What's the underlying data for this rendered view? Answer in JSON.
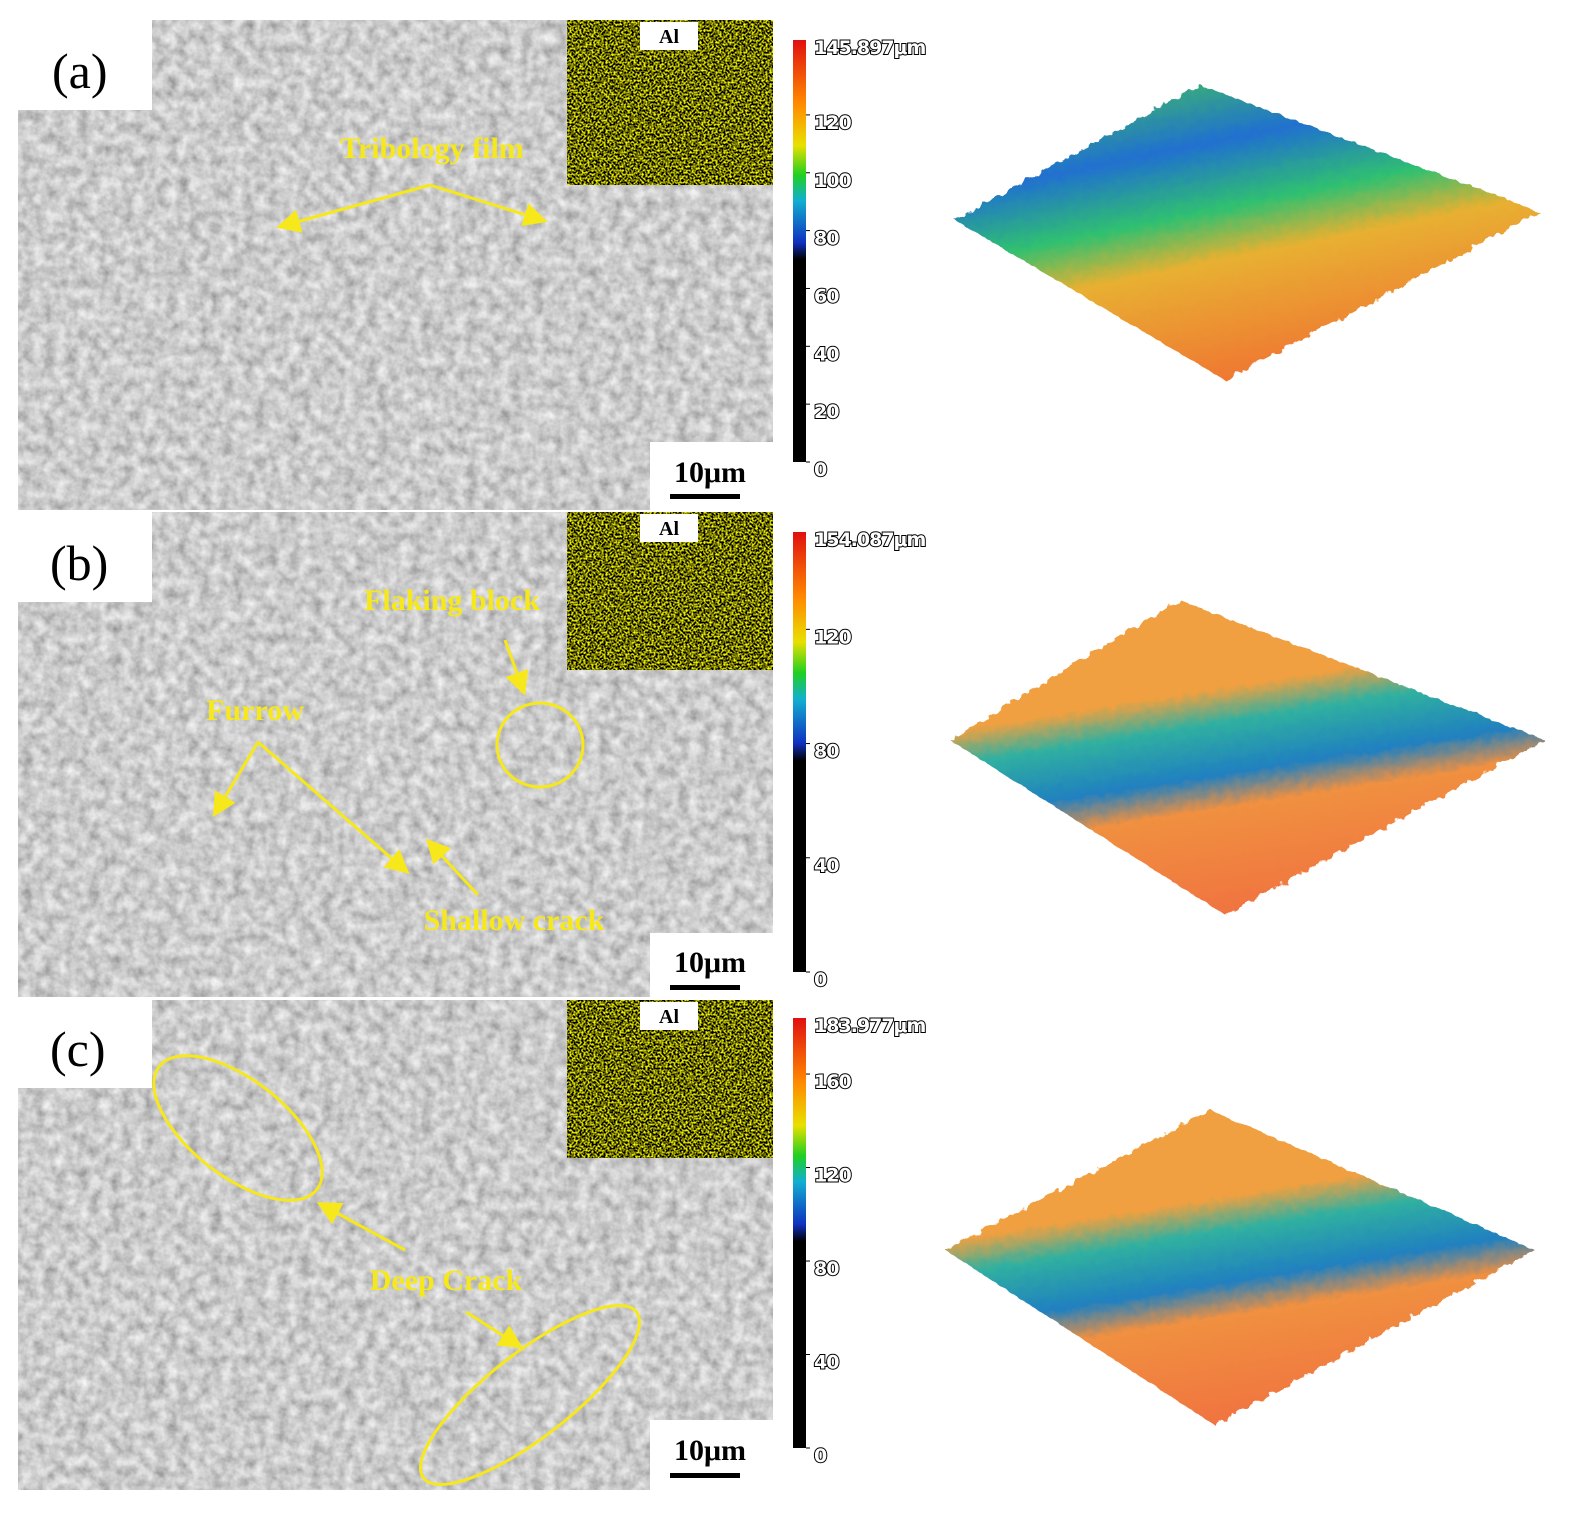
{
  "panels": [
    {
      "label": "(a)",
      "inset": "Al",
      "annotations": [
        "Tribology film"
      ],
      "scale_bar": "10μm",
      "colorbar": {
        "max": {
          "value": 145.897,
          "label": "145.897μm"
        },
        "ticks": [
          0,
          20,
          40,
          60,
          80,
          100,
          120
        ]
      }
    },
    {
      "label": "(b)",
      "inset": "Al",
      "annotations": [
        "Flaking block",
        "Furrow",
        "Shallow crack"
      ],
      "scale_bar": "10μm",
      "colorbar": {
        "max": {
          "value": 154.087,
          "label": "154.087μm"
        },
        "ticks": [
          0,
          40,
          80,
          120
        ]
      }
    },
    {
      "label": "(c)",
      "inset": "Al",
      "annotations": [
        "Deep Crack"
      ],
      "scale_bar": "10μm",
      "colorbar": {
        "max": {
          "value": 183.977,
          "label": "183.977μm"
        },
        "ticks": [
          0,
          40,
          80,
          120,
          160
        ]
      }
    }
  ]
}
